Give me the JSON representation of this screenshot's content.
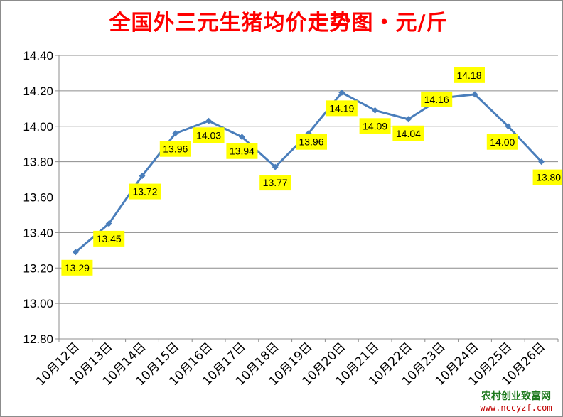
{
  "chart_data": {
    "type": "line",
    "title": "全国外三元生猪均价走势图・元/斤",
    "categories": [
      "10月12日",
      "10月13日",
      "10月14日",
      "10月15日",
      "10月16日",
      "10月17日",
      "10月18日",
      "10月19日",
      "10月20日",
      "10月21日",
      "10月22日",
      "10月23日",
      "10月24日",
      "10月25日",
      "10月26日"
    ],
    "series": [
      {
        "values": [
          13.29,
          13.45,
          13.72,
          13.96,
          14.03,
          13.94,
          13.77,
          13.96,
          14.19,
          14.09,
          14.04,
          14.16,
          14.18,
          14.0,
          13.8
        ]
      }
    ],
    "y_ticks": [
      "12.80",
      "13.00",
      "13.20",
      "13.40",
      "13.60",
      "13.80",
      "14.00",
      "14.20",
      "14.40"
    ],
    "ylim": [
      12.8,
      14.4
    ],
    "grid": true,
    "legend": "none",
    "colors": {
      "line": "#4a7ebb",
      "label_bg": "#ffff00",
      "title": "#ff0000"
    }
  },
  "watermark": {
    "line1": "农村创业致富网",
    "line2": "www.nccyzf.com"
  }
}
